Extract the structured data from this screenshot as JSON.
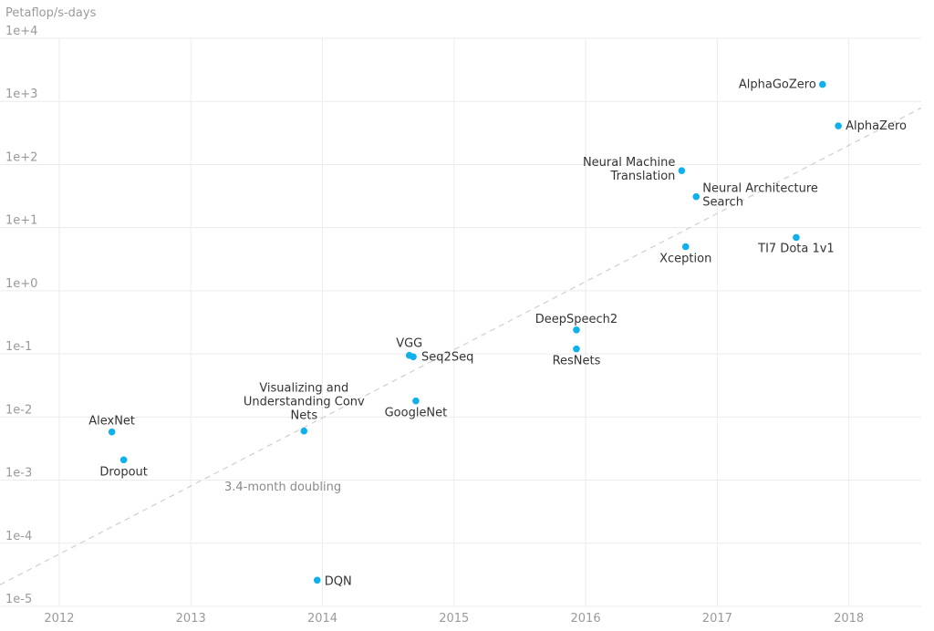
{
  "chart_data": {
    "type": "scatter",
    "title": "",
    "ylabel": "Petaflop/s-days",
    "xlabel": "",
    "y_scale": "log",
    "ylim": [
      1e-05,
      10000
    ],
    "xlim": [
      2011.55,
      2018.55
    ],
    "grid": true,
    "y_ticks": [
      "1e-5",
      "1e-4",
      "1e-3",
      "1e-2",
      "1e-1",
      "1e+0",
      "1e+1",
      "1e+2",
      "1e+3",
      "1e+4"
    ],
    "x_ticks": [
      "2012",
      "2013",
      "2014",
      "2015",
      "2016",
      "2017",
      "2018"
    ],
    "trendline": {
      "label": "3.4-month doubling",
      "from": {
        "x": 2011.55,
        "y": 2.2e-05
      },
      "to": {
        "x": 2018.55,
        "y": 790
      }
    },
    "points": [
      {
        "name": "AlexNet",
        "x": 2012.4,
        "y": 0.0058
      },
      {
        "name": "Dropout",
        "x": 2012.49,
        "y": 0.0021
      },
      {
        "name": "Visualizing and Understanding Conv Nets",
        "x": 2013.86,
        "y": 0.006
      },
      {
        "name": "DQN",
        "x": 2013.96,
        "y": 2.6e-05
      },
      {
        "name": "VGG",
        "x": 2014.66,
        "y": 0.095
      },
      {
        "name": "Seq2Seq",
        "x": 2014.69,
        "y": 0.09
      },
      {
        "name": "GoogleNet",
        "x": 2014.71,
        "y": 0.018
      },
      {
        "name": "DeepSpeech2",
        "x": 2015.93,
        "y": 0.24
      },
      {
        "name": "ResNets",
        "x": 2015.93,
        "y": 0.12
      },
      {
        "name": "Neural Machine Translation",
        "x": 2016.73,
        "y": 80
      },
      {
        "name": "Neural Architecture Search",
        "x": 2016.84,
        "y": 31
      },
      {
        "name": "Xception",
        "x": 2016.76,
        "y": 5
      },
      {
        "name": "TI7 Dota 1v1",
        "x": 2017.6,
        "y": 7
      },
      {
        "name": "AlphaGoZero",
        "x": 2017.8,
        "y": 1860
      },
      {
        "name": "AlphaZero",
        "x": 2017.92,
        "y": 410
      }
    ]
  }
}
